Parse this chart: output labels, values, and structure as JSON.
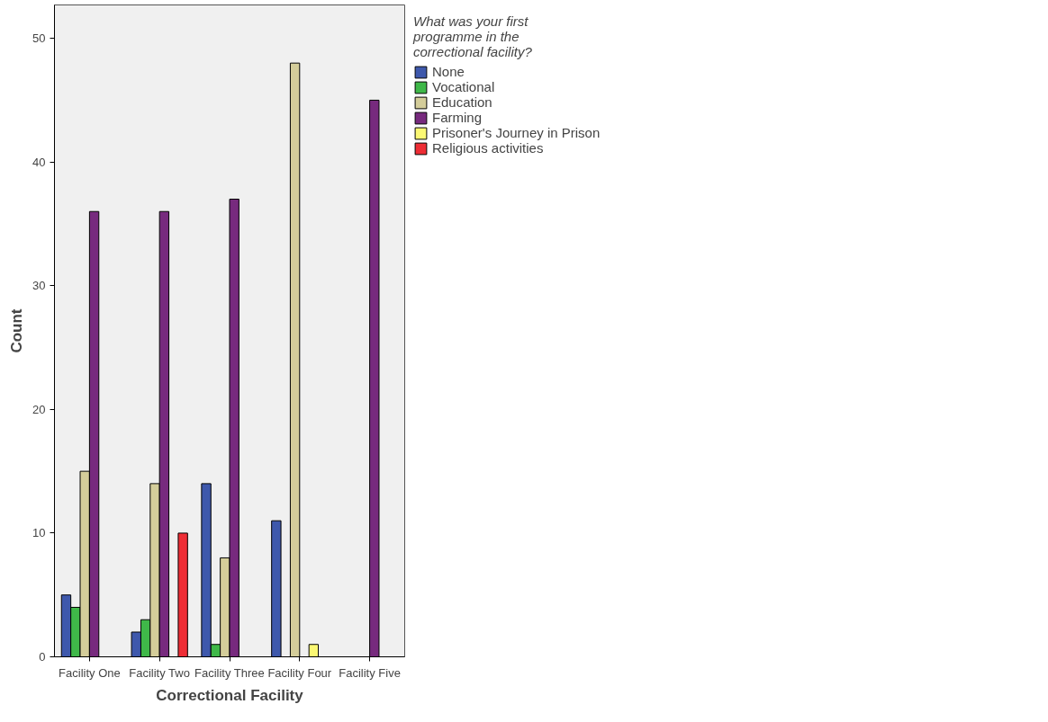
{
  "chart_data": {
    "type": "bar",
    "xlabel": "Correctional Facility",
    "ylabel": "Count",
    "legend_title": "What was your first programme in the correctional facility?",
    "categories": [
      "Facility One",
      "Facility Two",
      "Facility Three",
      "Facility Four",
      "Facility Five"
    ],
    "series": [
      {
        "name": "None",
        "color": "#3e58ac",
        "values": [
          5,
          2,
          14,
          11,
          null
        ]
      },
      {
        "name": "Vocational",
        "color": "#3fb849",
        "values": [
          4,
          3,
          1,
          null,
          null
        ]
      },
      {
        "name": "Education",
        "color": "#d4cd9a",
        "values": [
          15,
          14,
          8,
          48,
          null
        ]
      },
      {
        "name": "Farming",
        "color": "#772a7e",
        "values": [
          36,
          36,
          37,
          null,
          45
        ]
      },
      {
        "name": "Prisoner's Journey in Prison",
        "color": "#fbf873",
        "values": [
          null,
          null,
          null,
          1,
          null
        ]
      },
      {
        "name": "Religious activities",
        "color": "#ee2d35",
        "values": [
          null,
          10,
          null,
          null,
          null
        ]
      }
    ],
    "ylim": [
      0,
      52.7
    ],
    "yticks": [
      0,
      10,
      20,
      30,
      40,
      50
    ],
    "grid": false,
    "legend": "top right"
  }
}
